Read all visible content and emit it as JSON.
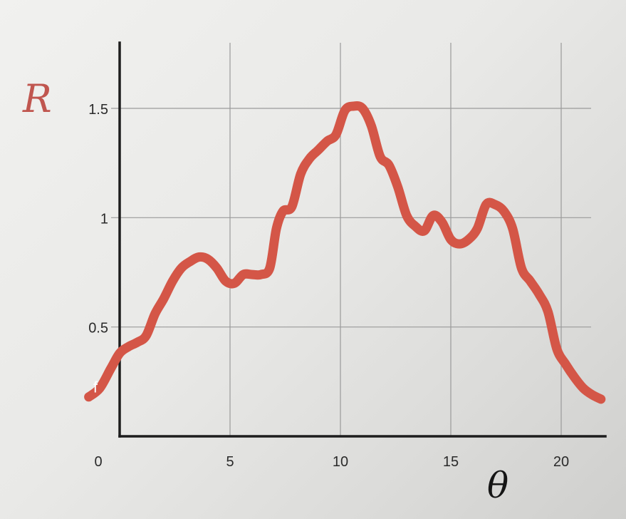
{
  "chart_data": {
    "type": "line",
    "title": "",
    "xlabel": "θ",
    "ylabel": "R",
    "xlim": [
      0,
      22
    ],
    "ylim": [
      0,
      1.8
    ],
    "grid": true,
    "x_ticks": [
      0,
      5,
      10,
      15,
      20
    ],
    "y_ticks": [
      0.5,
      1,
      1.5
    ],
    "x_tick_labels": [
      "0",
      "5",
      "10",
      "15",
      "20"
    ],
    "y_tick_labels": [
      "0.5",
      "1",
      "1.5"
    ],
    "series": [
      {
        "name": "",
        "color": "#d45647",
        "x": [
          -1.4,
          -0.9,
          -0.4,
          0,
          0.4,
          0.8,
          1.2,
          1.6,
          2.0,
          2.4,
          2.8,
          3.2,
          3.6,
          4.0,
          4.4,
          4.8,
          5.2,
          5.6,
          6.0,
          6.4,
          6.8,
          7.1,
          7.4,
          7.8,
          8.2,
          8.6,
          9.0,
          9.4,
          9.8,
          10.2,
          10.6,
          11.0,
          11.4,
          11.8,
          12.2,
          12.6,
          13.0,
          13.4,
          13.8,
          14.2,
          14.6,
          15.0,
          15.4,
          15.8,
          16.2,
          16.6,
          17.0,
          17.4,
          17.8,
          18.2,
          18.6,
          19.0,
          19.4,
          19.8,
          20.2,
          20.6,
          21.0,
          21.4,
          21.8
        ],
        "y": [
          0.18,
          0.22,
          0.31,
          0.38,
          0.41,
          0.43,
          0.46,
          0.56,
          0.63,
          0.71,
          0.77,
          0.8,
          0.82,
          0.81,
          0.77,
          0.71,
          0.7,
          0.74,
          0.74,
          0.74,
          0.77,
          0.95,
          1.03,
          1.05,
          1.2,
          1.27,
          1.31,
          1.35,
          1.38,
          1.49,
          1.51,
          1.5,
          1.42,
          1.28,
          1.24,
          1.14,
          1.01,
          0.96,
          0.94,
          1.01,
          0.98,
          0.9,
          0.88,
          0.9,
          0.95,
          1.06,
          1.06,
          1.03,
          0.95,
          0.77,
          0.71,
          0.65,
          0.57,
          0.4,
          0.33,
          0.27,
          0.22,
          0.19,
          0.17
        ]
      }
    ],
    "annotations": [
      {
        "text": "f",
        "x": -1.1,
        "y": 0.22
      }
    ]
  }
}
